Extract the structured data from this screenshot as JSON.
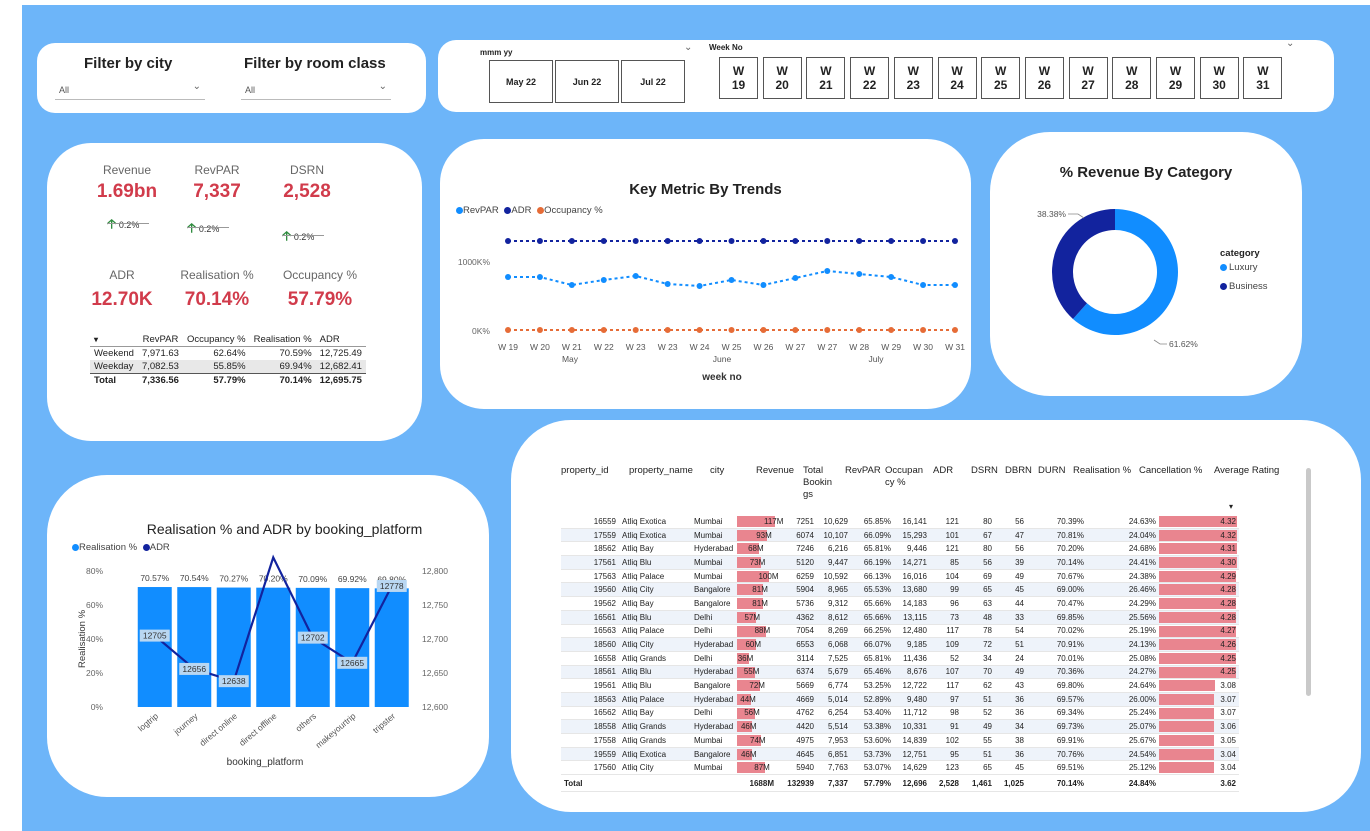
{
  "filters": {
    "city_label": "Filter by city",
    "city_value": "All",
    "room_label": "Filter by room class",
    "room_value": "All"
  },
  "slicers": {
    "month_label": "mmm yy",
    "months": [
      "May 22",
      "Jun 22",
      "Jul 22"
    ],
    "week_label": "Week No",
    "weeks": [
      "W 19",
      "W 20",
      "W 21",
      "W 22",
      "W 23",
      "W 24",
      "W 25",
      "W 26",
      "W 27",
      "W 28",
      "W 29",
      "W 30",
      "W 31"
    ]
  },
  "kpis": [
    {
      "label": "Revenue",
      "value": "1.69bn",
      "trend": "0.2%"
    },
    {
      "label": "RevPAR",
      "value": "7,337",
      "trend": "0.2%"
    },
    {
      "label": "DSRN",
      "value": "2,528",
      "trend": "0.2%"
    },
    {
      "label": "ADR",
      "value": "12.70K"
    },
    {
      "label": "Realisation %",
      "value": "70.14%"
    },
    {
      "label": "Occupancy %",
      "value": "57.79%"
    }
  ],
  "mini_table": {
    "headers": [
      "",
      "RevPAR",
      "Occupancy %",
      "Realisation %",
      "ADR"
    ],
    "rows": [
      [
        "Weekend",
        "7,971.63",
        "62.64%",
        "70.59%",
        "12,725.49"
      ],
      [
        "Weekday",
        "7,082.53",
        "55.85%",
        "69.94%",
        "12,682.41"
      ]
    ],
    "total": [
      "Total",
      "7,336.56",
      "57.79%",
      "70.14%",
      "12,695.75"
    ]
  },
  "trend_chart": {
    "title": "Key Metric By Trends",
    "legend": [
      "RevPAR",
      "ADR",
      "Occupancy %"
    ],
    "y_ticks": [
      "1000K%",
      "0K%"
    ],
    "x_ticks": [
      "W 19",
      "W 20",
      "W 21",
      "W 22",
      "W 23",
      "W 23",
      "W 24",
      "W 25",
      "W 26",
      "W 27",
      "W 27",
      "W 28",
      "W 29",
      "W 30",
      "W 31"
    ],
    "months": [
      "May",
      "June",
      "July"
    ],
    "xlabel": "week no",
    "colors": {
      "RevPAR": "#118dff",
      "ADR": "#12239e",
      "Occupancy": "#e66c37"
    }
  },
  "donut": {
    "title": "% Revenue By Category",
    "legend_title": "category",
    "slices": [
      {
        "name": "Luxury",
        "pct": "61.62%",
        "value": 61.62,
        "color": "#118dff"
      },
      {
        "name": "Business",
        "pct": "38.38%",
        "value": 38.38,
        "color": "#12239e"
      }
    ]
  },
  "platform_chart": {
    "title": "Realisation % and ADR by booking_platform",
    "legend": [
      "Realisation %",
      "ADR"
    ],
    "xlabel": "booking_platform",
    "ylabel_left": "Realisation %",
    "left_ticks": [
      "80%",
      "60%",
      "40%",
      "20%",
      "0%"
    ],
    "right_ticks": [
      "12,800",
      "12,750",
      "12,700",
      "12,650",
      "12,600"
    ],
    "colors": {
      "bar": "#118dff",
      "line": "#12239e"
    }
  },
  "chart_data": {
    "type": "bar",
    "title": "Realisation % and ADR by booking_platform",
    "xlabel": "booking_platform",
    "ylabel": "Realisation %",
    "categories": [
      "logtrip",
      "journey",
      "direct online",
      "direct offline",
      "others",
      "makeyourtrip",
      "tripster"
    ],
    "series": [
      {
        "name": "Realisation %",
        "type": "bar",
        "values": [
          70.57,
          70.54,
          70.27,
          70.2,
          70.09,
          69.92,
          69.8
        ],
        "labels": [
          "70.57%",
          "70.54%",
          "70.27%",
          "70.20%",
          "70.09%",
          "69.92%",
          "69.80%"
        ],
        "ylim": [
          0,
          80
        ]
      },
      {
        "name": "ADR",
        "type": "line",
        "values": [
          12705,
          12656,
          12638,
          12820,
          12702,
          12665,
          12778
        ],
        "labels": [
          "12705",
          "12656",
          "12638",
          "",
          "12702",
          "12665",
          "12778"
        ],
        "ylim": [
          12600,
          12800
        ]
      }
    ]
  },
  "property_table": {
    "headers": [
      "property_id",
      "property_name",
      "city",
      "Revenue",
      "Total Bookings",
      "RevPAR",
      "Occupancy %",
      "ADR",
      "DSRN",
      "DBRN",
      "DURN",
      "Realisation %",
      "Cancellation %",
      "Average Rating"
    ],
    "header_display": [
      "property_id",
      "property_name",
      "city",
      "Revenue",
      "Total\nBookin\ngs",
      "RevPAR",
      "Occupan\ncy %",
      "ADR",
      "DSRN",
      "DBRN",
      "DURN",
      "Realisation %",
      "Cancellation %",
      "Average Rating"
    ],
    "rows": [
      [
        "16559",
        "Atliq Exotica",
        "Mumbai",
        "117M",
        "7251",
        "10,629",
        "65.85%",
        "16,141",
        "121",
        "80",
        "56",
        "70.39%",
        "24.63%",
        "4.32"
      ],
      [
        "17559",
        "Atliq Exotica",
        "Mumbai",
        "93M",
        "6074",
        "10,107",
        "66.09%",
        "15,293",
        "101",
        "67",
        "47",
        "70.81%",
        "24.04%",
        "4.32"
      ],
      [
        "18562",
        "Atliq Bay",
        "Hyderabad",
        "68M",
        "7246",
        "6,216",
        "65.81%",
        "9,446",
        "121",
        "80",
        "56",
        "70.20%",
        "24.68%",
        "4.31"
      ],
      [
        "17561",
        "Atliq Blu",
        "Mumbai",
        "73M",
        "5120",
        "9,447",
        "66.19%",
        "14,271",
        "85",
        "56",
        "39",
        "70.14%",
        "24.41%",
        "4.30"
      ],
      [
        "17563",
        "Atliq Palace",
        "Mumbai",
        "100M",
        "6259",
        "10,592",
        "66.13%",
        "16,016",
        "104",
        "69",
        "49",
        "70.67%",
        "24.38%",
        "4.29"
      ],
      [
        "19560",
        "Atliq City",
        "Bangalore",
        "81M",
        "5904",
        "8,965",
        "65.53%",
        "13,680",
        "99",
        "65",
        "45",
        "69.00%",
        "26.46%",
        "4.28"
      ],
      [
        "19562",
        "Atliq Bay",
        "Bangalore",
        "81M",
        "5736",
        "9,312",
        "65.66%",
        "14,183",
        "96",
        "63",
        "44",
        "70.47%",
        "24.29%",
        "4.28"
      ],
      [
        "16561",
        "Atliq Blu",
        "Delhi",
        "57M",
        "4362",
        "8,612",
        "65.66%",
        "13,115",
        "73",
        "48",
        "33",
        "69.85%",
        "25.56%",
        "4.28"
      ],
      [
        "16563",
        "Atliq Palace",
        "Delhi",
        "88M",
        "7054",
        "8,269",
        "66.25%",
        "12,480",
        "117",
        "78",
        "54",
        "70.02%",
        "25.19%",
        "4.27"
      ],
      [
        "18560",
        "Atliq City",
        "Hyderabad",
        "60M",
        "6553",
        "6,068",
        "66.07%",
        "9,185",
        "109",
        "72",
        "51",
        "70.91%",
        "24.13%",
        "4.26"
      ],
      [
        "16558",
        "Atliq Grands",
        "Delhi",
        "36M",
        "3114",
        "7,525",
        "65.81%",
        "11,436",
        "52",
        "34",
        "24",
        "70.01%",
        "25.08%",
        "4.25"
      ],
      [
        "18561",
        "Atliq Blu",
        "Hyderabad",
        "55M",
        "6374",
        "5,679",
        "65.46%",
        "8,676",
        "107",
        "70",
        "49",
        "70.36%",
        "24.27%",
        "4.25"
      ],
      [
        "19561",
        "Atliq Blu",
        "Bangalore",
        "72M",
        "5669",
        "6,774",
        "53.25%",
        "12,722",
        "117",
        "62",
        "43",
        "69.80%",
        "24.64%",
        "3.08"
      ],
      [
        "18563",
        "Atliq Palace",
        "Hyderabad",
        "44M",
        "4669",
        "5,014",
        "52.89%",
        "9,480",
        "97",
        "51",
        "36",
        "69.57%",
        "26.00%",
        "3.07"
      ],
      [
        "16562",
        "Atliq Bay",
        "Delhi",
        "56M",
        "4762",
        "6,254",
        "53.40%",
        "11,712",
        "98",
        "52",
        "36",
        "69.34%",
        "25.24%",
        "3.07"
      ],
      [
        "18558",
        "Atliq Grands",
        "Hyderabad",
        "46M",
        "4420",
        "5,514",
        "53.38%",
        "10,331",
        "91",
        "49",
        "34",
        "69.73%",
        "25.07%",
        "3.06"
      ],
      [
        "17558",
        "Atliq Grands",
        "Mumbai",
        "74M",
        "4975",
        "7,953",
        "53.60%",
        "14,839",
        "102",
        "55",
        "38",
        "69.91%",
        "25.67%",
        "3.05"
      ],
      [
        "19559",
        "Atliq Exotica",
        "Bangalore",
        "46M",
        "4645",
        "6,851",
        "53.73%",
        "12,751",
        "95",
        "51",
        "36",
        "70.76%",
        "24.54%",
        "3.04"
      ],
      [
        "17560",
        "Atliq City",
        "Mumbai",
        "87M",
        "5940",
        "7,763",
        "53.07%",
        "14,629",
        "123",
        "65",
        "45",
        "69.51%",
        "25.12%",
        "3.04"
      ]
    ],
    "revenue_values": [
      117,
      93,
      68,
      73,
      100,
      81,
      81,
      57,
      88,
      60,
      36,
      55,
      72,
      44,
      56,
      46,
      74,
      46,
      87
    ],
    "rating_values": [
      4.32,
      4.32,
      4.31,
      4.3,
      4.29,
      4.28,
      4.28,
      4.28,
      4.27,
      4.26,
      4.25,
      4.25,
      3.08,
      3.07,
      3.07,
      3.06,
      3.05,
      3.04,
      3.04
    ],
    "total": [
      "Total",
      "",
      "",
      "1688M",
      "132939",
      "7,337",
      "57.79%",
      "12,696",
      "2,528",
      "1,461",
      "1,025",
      "70.14%",
      "24.84%",
      "3.62"
    ],
    "colors": {
      "bar": "#e9858f"
    }
  }
}
